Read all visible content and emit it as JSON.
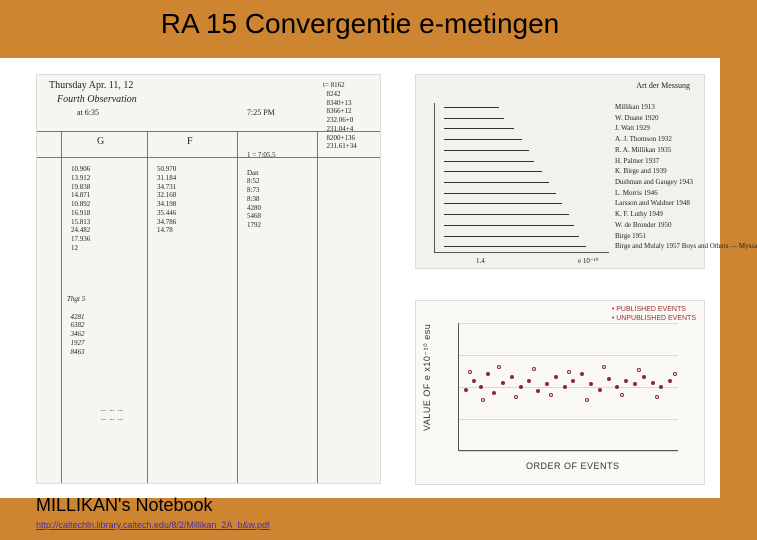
{
  "header": {
    "title": "RA 15 Convergentie e-metingen"
  },
  "caption": "MILLIKAN's Notebook",
  "link_text": "http://caltechln.library.caltech.edu/8/2/Millikan_2A_b&w.pdf",
  "notebook": {
    "bg": "#f7f5f0",
    "border": "#dcdcdc",
    "line_color": "#777",
    "header_scribble_top": "Thursday  Apr. 11, 12",
    "header_scribble_mid": "Fourth Observation",
    "header_scribble_time": "at 6:35",
    "header_right_top": "7:25 PM",
    "col_headers": {
      "G": "G",
      "F": "F"
    },
    "vlines_x": [
      24,
      110,
      200,
      280
    ],
    "hlines_y": [
      56,
      82
    ],
    "col1": "10.906\n13.912\n19.838\n14.871\n10.892\n16.918\n15.813\n24.482\n17.936\n12",
    "col2": "50.970\n31.184\n34.731\n32.168\n34.198\n35.446\n34.786\n14.78",
    "col3": "1 = 7:05.5\n\nDan\n8:52\n8:73\n8:38\n4280\n5468\n1792",
    "col4": "t= 8162\n  8242\n  8340+13\n  8366+12\n  232.06+0\n  231.04+4\n  8200+136\n  231.61+34",
    "lower_scribble": "Thgt 5\n\n  4281\n  6382\n  3462\n  1927\n  8463",
    "bottom_scribble": "  ...  ...  ...\n  ...  ...  ..."
  },
  "panel_top": {
    "bg": "#f3f1eb",
    "heading": "Art der Messung",
    "rows": [
      {
        "w": 55,
        "label": "Millikan 1913"
      },
      {
        "w": 60,
        "label": "W. Duane 1920"
      },
      {
        "w": 70,
        "label": "J. Watt 1929"
      },
      {
        "w": 78,
        "label": "A. J. Thomson 1932"
      },
      {
        "w": 85,
        "label": "R. A. Millikan 1935"
      },
      {
        "w": 90,
        "label": "H. Palmer 1937"
      },
      {
        "w": 98,
        "label": "K. Birge and 1939"
      },
      {
        "w": 105,
        "label": "Dushman and Gaugey 1943"
      },
      {
        "w": 112,
        "label": "L. Morris 1946"
      },
      {
        "w": 118,
        "label": "Larsson and Waldner 1948"
      },
      {
        "w": 125,
        "label": "K. F. Luthy 1949"
      },
      {
        "w": 130,
        "label": "W. de Bronder 1950"
      },
      {
        "w": 135,
        "label": "Birge 1951"
      },
      {
        "w": 142,
        "label": "Birge and Mulaly 1957\nBoys and Others — Myssa"
      }
    ],
    "xaxis_left": "1.4",
    "xaxis_right": "e  10⁻¹⁰"
  },
  "panel_bottom": {
    "bg": "#faf9f6",
    "legend_pub": "• PUBLISHED EVENTS",
    "legend_unpub": "• UNPUBLISHED EVENTS",
    "ylabel": "VALUE OF e  x10⁻¹⁰ esu",
    "xlabel": "ORDER OF EVENTS",
    "grid_color": "#d9d9d9",
    "ylim": [
      4.7,
      4.9
    ],
    "grid_y": [
      0.0,
      0.25,
      0.5,
      0.75,
      1.0
    ],
    "points_filled": [
      [
        0.03,
        0.48
      ],
      [
        0.07,
        0.55
      ],
      [
        0.1,
        0.5
      ],
      [
        0.13,
        0.6
      ],
      [
        0.16,
        0.45
      ],
      [
        0.2,
        0.53
      ],
      [
        0.24,
        0.58
      ],
      [
        0.28,
        0.5
      ],
      [
        0.32,
        0.55
      ],
      [
        0.36,
        0.47
      ],
      [
        0.4,
        0.52
      ],
      [
        0.44,
        0.58
      ],
      [
        0.48,
        0.5
      ],
      [
        0.52,
        0.55
      ],
      [
        0.56,
        0.6
      ],
      [
        0.6,
        0.52
      ],
      [
        0.64,
        0.48
      ],
      [
        0.68,
        0.56
      ],
      [
        0.72,
        0.5
      ],
      [
        0.76,
        0.55
      ],
      [
        0.8,
        0.52
      ],
      [
        0.84,
        0.58
      ],
      [
        0.88,
        0.53
      ],
      [
        0.92,
        0.5
      ],
      [
        0.96,
        0.55
      ]
    ],
    "points_open": [
      [
        0.05,
        0.62
      ],
      [
        0.11,
        0.4
      ],
      [
        0.18,
        0.66
      ],
      [
        0.26,
        0.42
      ],
      [
        0.34,
        0.64
      ],
      [
        0.42,
        0.44
      ],
      [
        0.5,
        0.62
      ],
      [
        0.58,
        0.4
      ],
      [
        0.66,
        0.66
      ],
      [
        0.74,
        0.44
      ],
      [
        0.82,
        0.63
      ],
      [
        0.9,
        0.42
      ],
      [
        0.98,
        0.6
      ]
    ],
    "point_color": "#8b2b2b"
  }
}
